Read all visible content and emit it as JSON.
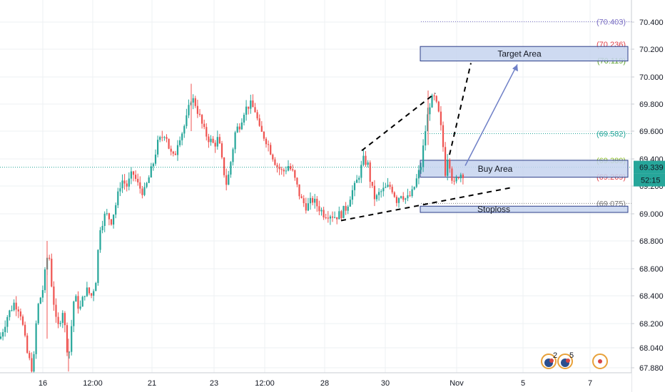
{
  "chart_data": {
    "type": "candlestick",
    "title": "",
    "xlabel": "",
    "ylabel": "",
    "x_tick_labels": [
      "16",
      "12:00",
      "21",
      "23",
      "12:00",
      "28",
      "30",
      "Nov",
      "5",
      "7"
    ],
    "y_tick_labels": [
      "70.400",
      "70.200",
      "70.000",
      "69.800",
      "69.600",
      "69.400",
      "69.200",
      "69.000",
      "68.800",
      "68.600",
      "68.400",
      "68.200",
      "68.040",
      "67.880"
    ],
    "ylim": [
      67.87,
      70.52
    ],
    "grid": true,
    "current_price": {
      "value": 69.339,
      "label": "69.339"
    },
    "countdown": "52:15",
    "price_levels": [
      {
        "label": "(70.403)",
        "value": 70.403,
        "color": "#7b6fc4"
      },
      {
        "label": "(70.236)",
        "value": 70.236,
        "color": "#e0404a"
      },
      {
        "label": "(70.119)",
        "value": 70.119,
        "color": "#5aa02c"
      },
      {
        "label": "(69.582)",
        "value": 69.582,
        "color": "#26a69a"
      },
      {
        "label": "(69.389)",
        "value": 69.389,
        "color": "#8cbf26"
      },
      {
        "label": "(69.269)",
        "value": 69.269,
        "color": "#e0404a"
      },
      {
        "label": "(69.075)",
        "value": 69.075,
        "color": "#777777"
      }
    ],
    "zones": [
      {
        "label": "Target Area",
        "top": 70.22,
        "bottom": 70.115
      },
      {
        "label": "Buy Area",
        "top": 69.39,
        "bottom": 69.265
      },
      {
        "label": "Stoploss",
        "top": 69.055,
        "bottom": 69.01
      }
    ],
    "event_markers": [
      "2",
      "5"
    ],
    "colors": {
      "up": "#26a69a",
      "down": "#ef5350",
      "current": "#26a69a",
      "zone_fill": "#c5d3ee",
      "zone_border": "#2c3e88",
      "arrow": "#6f80c7"
    }
  }
}
